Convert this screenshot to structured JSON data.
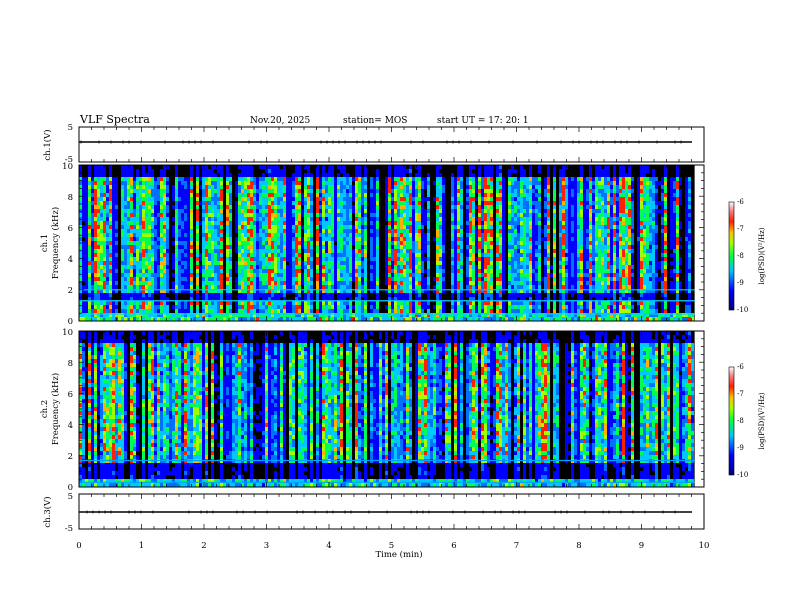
{
  "header": {
    "title": "VLF Spectra",
    "date": "Nov.20, 2025",
    "station": "station= MOS",
    "start": "start  UT =   17: 20: 1"
  },
  "chart_data": [
    {
      "type": "line",
      "name": "ch.1 waveform",
      "ylabel": "ch.1(V)",
      "ylim": [
        -5,
        5
      ],
      "ytick_labels": [
        "5",
        "-5"
      ],
      "series": [
        {
          "name": "ch.1",
          "level": 0
        }
      ]
    },
    {
      "type": "heatmap",
      "name": "ch.1 spectrogram",
      "ylabel_line1": "ch.1",
      "ylabel_line2": "Frequency (kHz)",
      "ylim": [
        0,
        10
      ],
      "ytick_labels": [
        "0",
        "2",
        "4",
        "6",
        "8",
        "10"
      ],
      "colorbar": {
        "label": "log(PSD)(V²/Hz)",
        "range": [
          -10,
          -6
        ],
        "tick_labels": [
          "-6",
          "-7",
          "-8",
          "-9",
          "-10"
        ]
      }
    },
    {
      "type": "heatmap",
      "name": "ch.2 spectrogram",
      "ylabel_line1": "ch.2",
      "ylabel_line2": "Frequency (kHz)",
      "ylim": [
        0,
        10
      ],
      "ytick_labels": [
        "0",
        "2",
        "4",
        "6",
        "8",
        "10"
      ],
      "colorbar": {
        "label": "log(PSD)(V²/Hz)",
        "range": [
          -10,
          -6
        ],
        "tick_labels": [
          "-6",
          "-7",
          "-8",
          "-9",
          "-10"
        ]
      }
    },
    {
      "type": "line",
      "name": "ch.3 waveform",
      "ylabel": "ch.3(V)",
      "ylim": [
        -5,
        5
      ],
      "ytick_labels": [
        "5",
        "-5"
      ],
      "series": [
        {
          "name": "ch.3",
          "level": 0
        }
      ]
    }
  ],
  "xaxis": {
    "label": "Time (min)",
    "range": [
      0,
      10
    ],
    "data_end": 9.85,
    "tick_labels": [
      "0",
      "1",
      "2",
      "3",
      "4",
      "5",
      "6",
      "7",
      "8",
      "9",
      "10"
    ]
  },
  "colors": {
    "background": "#000000",
    "low": "#0000ff",
    "mid": "#00ff66",
    "high": "#ff0000"
  }
}
